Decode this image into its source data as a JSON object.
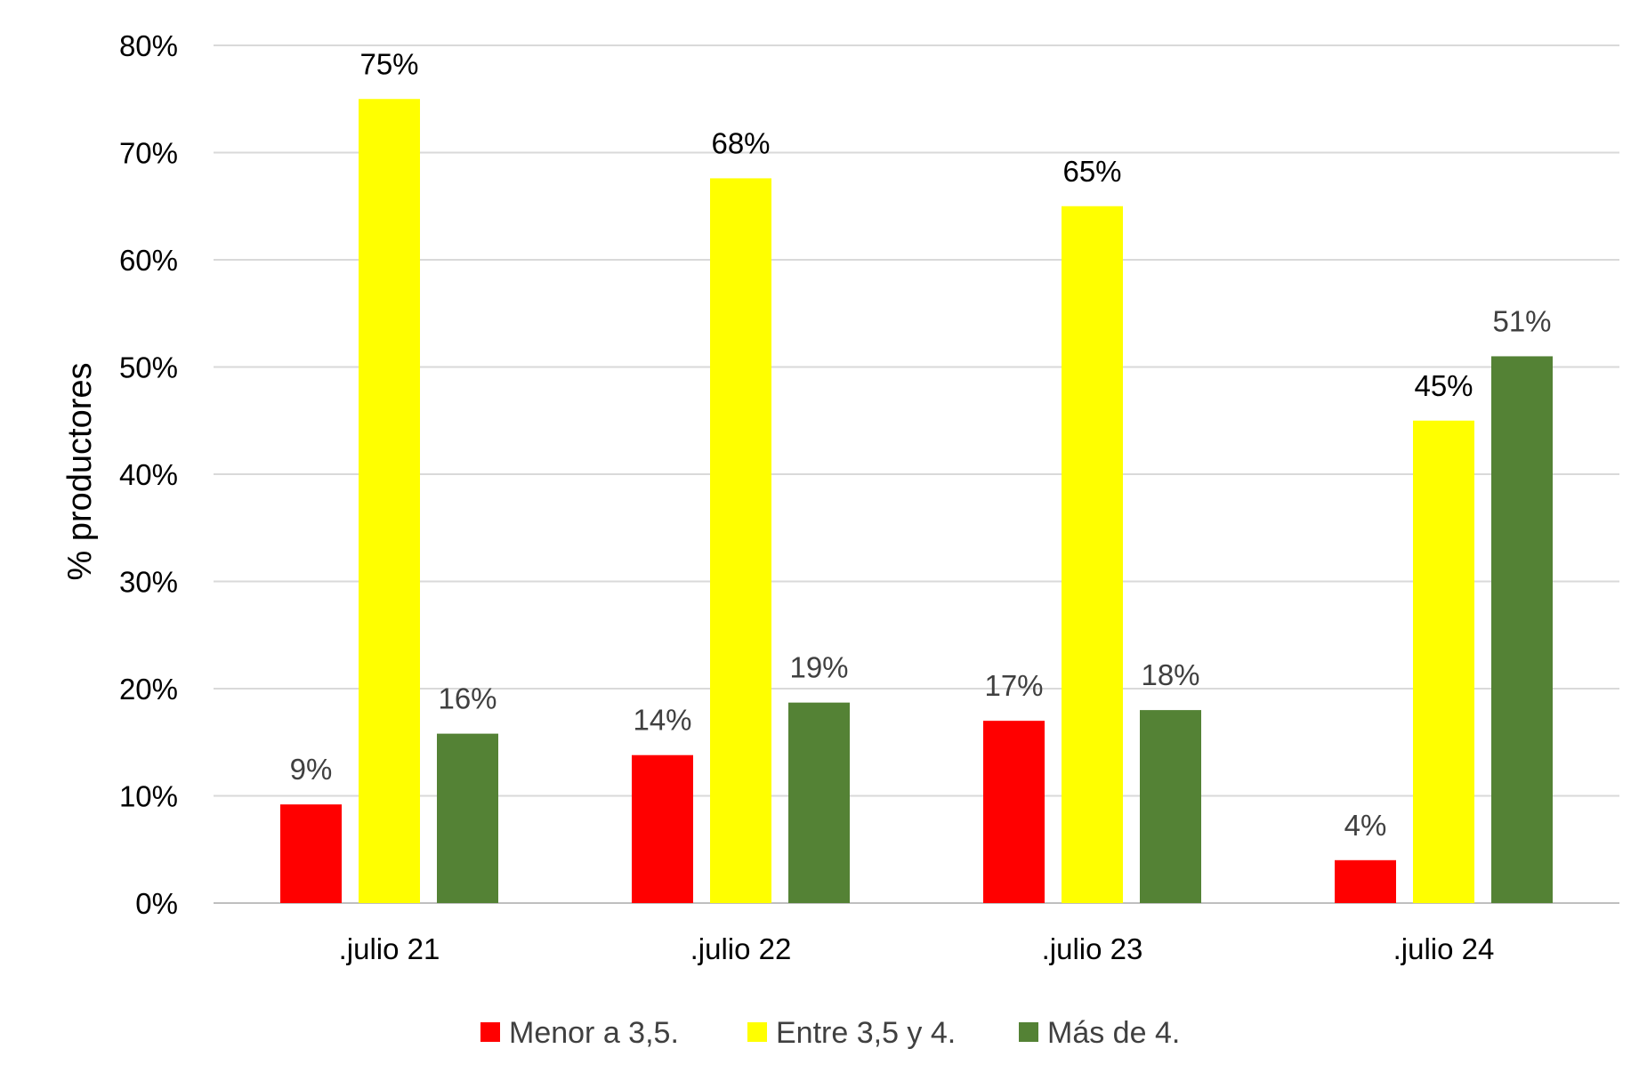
{
  "chart_data": {
    "type": "bar",
    "title": "",
    "xlabel": "",
    "ylabel": "% productores",
    "ylim": [
      0,
      80
    ],
    "yticks": [
      "0%",
      "10%",
      "20%",
      "30%",
      "40%",
      "50%",
      "60%",
      "70%",
      "80%"
    ],
    "grid": true,
    "legend_position": "bottom",
    "categories": [
      ".julio 21",
      ".julio 22",
      ".julio 23",
      ".julio 24"
    ],
    "series": [
      {
        "name": "Menor a 3,5.",
        "color": "#ff0000",
        "label_color": "#404040",
        "values": [
          9.2,
          13.8,
          17.0,
          4.0
        ],
        "labels": [
          "9%",
          "14%",
          "17%",
          "4%"
        ]
      },
      {
        "name": "Entre 3,5 y 4.",
        "color": "#ffff00",
        "label_color": "#000000",
        "values": [
          75.0,
          67.6,
          65.0,
          45.0
        ],
        "labels": [
          "75%",
          "68%",
          "65%",
          "45%"
        ]
      },
      {
        "name": "Más de 4.",
        "color": "#548235",
        "label_color": "#404040",
        "values": [
          15.8,
          18.7,
          18.0,
          51.0
        ],
        "labels": [
          "16%",
          "19%",
          "18%",
          "51%"
        ]
      }
    ]
  }
}
